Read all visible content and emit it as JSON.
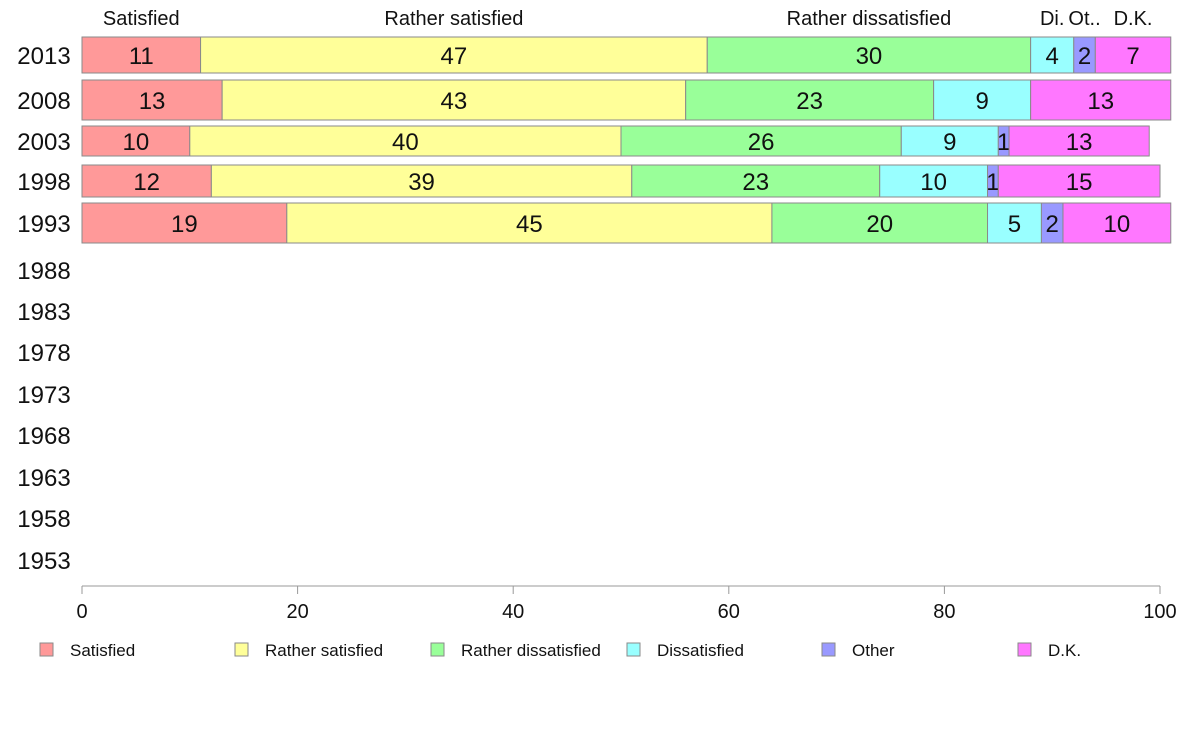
{
  "chart_data": {
    "type": "bar",
    "orientation": "horizontal",
    "stacked": true,
    "categories": [
      "2013",
      "2008",
      "2003",
      "1998",
      "1993",
      "1988",
      "1983",
      "1978",
      "1973",
      "1968",
      "1963",
      "1958",
      "1953"
    ],
    "series": [
      {
        "name": "Satisfied",
        "color": "#ff9999",
        "values": [
          11,
          13,
          10,
          12,
          19,
          null,
          null,
          null,
          null,
          null,
          null,
          null,
          null
        ]
      },
      {
        "name": "Rather satisfied",
        "color": "#ffff99",
        "values": [
          47,
          43,
          40,
          39,
          45,
          null,
          null,
          null,
          null,
          null,
          null,
          null,
          null
        ]
      },
      {
        "name": "Rather dissatisfied",
        "color": "#99ff99",
        "values": [
          30,
          23,
          26,
          23,
          20,
          null,
          null,
          null,
          null,
          null,
          null,
          null,
          null
        ]
      },
      {
        "name": "Dissatisfied",
        "color": "#99ffff",
        "values": [
          4,
          9,
          9,
          10,
          5,
          null,
          null,
          null,
          null,
          null,
          null,
          null,
          null
        ]
      },
      {
        "name": "Other",
        "color": "#9999ff",
        "values": [
          2,
          0,
          1,
          1,
          2,
          null,
          null,
          null,
          null,
          null,
          null,
          null,
          null
        ]
      },
      {
        "name": "D.K.",
        "color": "#ff77ff",
        "values": [
          7,
          13,
          13,
          15,
          10,
          null,
          null,
          null,
          null,
          null,
          null,
          null,
          null
        ]
      }
    ],
    "top_labels": [
      "Satisfied",
      "Rather satisfied",
      "Rather dissatisfied",
      "Di.",
      "Ot..",
      "D.K."
    ],
    "xlim": [
      0,
      100
    ],
    "xticks": [
      "0",
      "20",
      "40",
      "60",
      "80",
      "100"
    ],
    "title": "",
    "xlabel": "",
    "ylabel": "",
    "legend_position": "bottom",
    "grid": false
  }
}
